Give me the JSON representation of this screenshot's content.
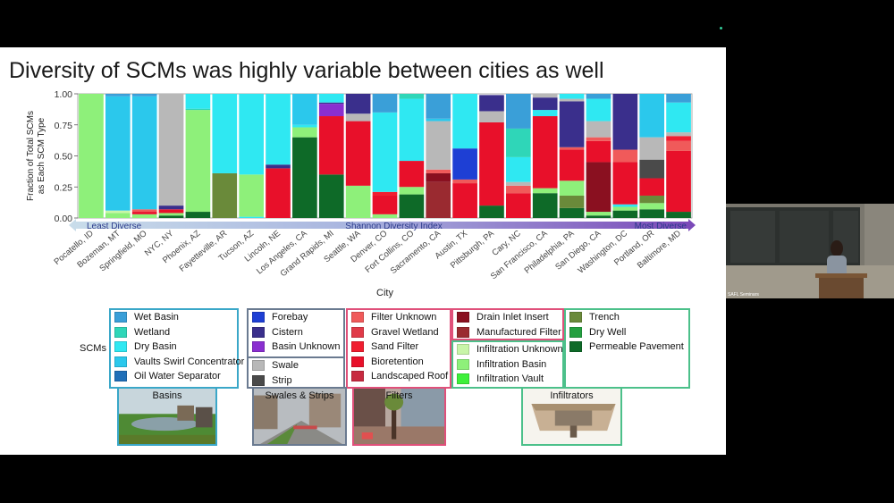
{
  "slide": {
    "title": "Diversity of SCMs was highly variable between cities as well"
  },
  "chart_data": {
    "type": "bar",
    "stacked": true,
    "ylabel": "Fraction of Total SCMs as Each SCM Type",
    "xlabel": "City",
    "ylim": [
      0,
      1
    ],
    "yticks": [
      "0.00",
      "0.25",
      "0.50",
      "0.75",
      "1.00"
    ],
    "arrow": {
      "label": "Shannon Diversity Index",
      "left_label": "Least Diverse",
      "right_label": "Most Diverse"
    },
    "categories": [
      "Pocatello, ID",
      "Bozeman, MT",
      "Springfield, MO",
      "NYC, NY",
      "Phoenix, AZ",
      "Fayetteville, AR",
      "Tucson, AZ",
      "Lincoln, NE",
      "Los Angeles, CA",
      "Grand Rapids, MI",
      "Seattle, WA",
      "Denver, CO",
      "Fort Collins, CO",
      "Sacramento, CA",
      "Austin, TX",
      "Pittsburgh, PA",
      "Cary, NC",
      "San Francisco, CA",
      "Philadelphia, PA",
      "San Diego, CA",
      "Washington, DC",
      "Portland, OR",
      "Baltimore, MD"
    ],
    "series_types": [
      "Wet Basin",
      "Wetland",
      "Dry Basin",
      "Vaults Swirl Concentrator",
      "Oil Water Separator",
      "Forebay",
      "Cistern",
      "Basin Unknown",
      "Swale",
      "Strip",
      "Filter Unknown",
      "Gravel Wetland",
      "Sand Filter",
      "Bioretention",
      "Landscaped Roof",
      "Drain Inlet Insert",
      "Manufactured Filter",
      "Infiltration Unknown",
      "Infiltration Basin",
      "Infiltration Vault",
      "Trench",
      "Dry Well",
      "Permeable Pavement"
    ],
    "stacks": [
      [
        [
          "Infiltration Basin",
          1.0
        ]
      ],
      [
        [
          "Infiltration Basin",
          0.04
        ],
        [
          "Infiltration Unknown",
          0.02
        ],
        [
          "Vaults Swirl Concentrator",
          0.92
        ],
        [
          "Wet Basin",
          0.02
        ]
      ],
      [
        [
          "Infiltration Basin",
          0.03
        ],
        [
          "Bioretention",
          0.02
        ],
        [
          "Filter Unknown",
          0.02
        ],
        [
          "Vaults Swirl Concentrator",
          0.91
        ],
        [
          "Wet Basin",
          0.02
        ]
      ],
      [
        [
          "Permeable Pavement",
          0.02
        ],
        [
          "Infiltration Basin",
          0.02
        ],
        [
          "Bioretention",
          0.03
        ],
        [
          "Cistern",
          0.03
        ],
        [
          "Swale",
          0.9
        ]
      ],
      [
        [
          "Permeable Pavement",
          0.05
        ],
        [
          "Infiltration Basin",
          0.82
        ],
        [
          "Wetland",
          0.01
        ],
        [
          "Dry Basin",
          0.12
        ]
      ],
      [
        [
          "Trench",
          0.36
        ],
        [
          "Dry Basin",
          0.64
        ]
      ],
      [
        [
          "Dry Basin",
          0.01
        ],
        [
          "Infiltration Basin",
          0.34
        ],
        [
          "Dry Basin",
          0.65
        ]
      ],
      [
        [
          "Bioretention",
          0.4
        ],
        [
          "Cistern",
          0.03
        ],
        [
          "Dry Basin",
          0.57
        ]
      ],
      [
        [
          "Permeable Pavement",
          0.65
        ],
        [
          "Infiltration Basin",
          0.08
        ],
        [
          "Dry Basin",
          0.02
        ],
        [
          "Vaults Swirl Concentrator",
          0.25
        ]
      ],
      [
        [
          "Permeable Pavement",
          0.35
        ],
        [
          "Bioretention",
          0.47
        ],
        [
          "Basin Unknown",
          0.1
        ],
        [
          "Cistern",
          0.01
        ],
        [
          "Dry Basin",
          0.07
        ]
      ],
      [
        [
          "Infiltration Basin",
          0.26
        ],
        [
          "Bioretention",
          0.52
        ],
        [
          "Swale",
          0.06
        ],
        [
          "Cistern",
          0.16
        ]
      ],
      [
        [
          "Infiltration Basin",
          0.03
        ],
        [
          "Bioretention",
          0.15
        ],
        [
          "Sand Filter",
          0.03
        ],
        [
          "Dry Basin",
          0.64
        ],
        [
          "Wet Basin",
          0.15
        ]
      ],
      [
        [
          "Permeable Pavement",
          0.19
        ],
        [
          "Infiltration Basin",
          0.06
        ],
        [
          "Bioretention",
          0.21
        ],
        [
          "Dry Basin",
          0.5
        ],
        [
          "Wetland",
          0.04
        ]
      ],
      [
        [
          "Manufactured Filter",
          0.29
        ],
        [
          "Drain Inlet Insert",
          0.07
        ],
        [
          "Filter Unknown",
          0.03
        ],
        [
          "Swale",
          0.39
        ],
        [
          "Vaults Swirl Concentrator",
          0.02
        ],
        [
          "Wet Basin",
          0.2
        ]
      ],
      [
        [
          "Bioretention",
          0.28
        ],
        [
          "Filter Unknown",
          0.03
        ],
        [
          "Forebay",
          0.25
        ],
        [
          "Dry Basin",
          0.44
        ]
      ],
      [
        [
          "Permeable Pavement",
          0.1
        ],
        [
          "Bioretention",
          0.67
        ],
        [
          "Swale",
          0.09
        ],
        [
          "Cistern",
          0.13
        ]
      ],
      [
        [
          "Bioretention",
          0.2
        ],
        [
          "Filter Unknown",
          0.06
        ],
        [
          "Swale",
          0.03
        ],
        [
          "Dry Basin",
          0.2
        ],
        [
          "Wetland",
          0.23
        ],
        [
          "Wet Basin",
          0.28
        ]
      ],
      [
        [
          "Permeable Pavement",
          0.2
        ],
        [
          "Infiltration Basin",
          0.04
        ],
        [
          "Bioretention",
          0.58
        ],
        [
          "Dry Basin",
          0.05
        ],
        [
          "Cistern",
          0.1
        ],
        [
          "Swale",
          0.03
        ]
      ],
      [
        [
          "Permeable Pavement",
          0.08
        ],
        [
          "Trench",
          0.1
        ],
        [
          "Infiltration Basin",
          0.12
        ],
        [
          "Bioretention",
          0.25
        ],
        [
          "Filter Unknown",
          0.02
        ],
        [
          "Cistern",
          0.37
        ],
        [
          "Swale",
          0.02
        ],
        [
          "Dry Basin",
          0.04
        ]
      ],
      [
        [
          "Permeable Pavement",
          0.02
        ],
        [
          "Infiltration Basin",
          0.03
        ],
        [
          "Drain Inlet Insert",
          0.4
        ],
        [
          "Bioretention",
          0.17
        ],
        [
          "Filter Unknown",
          0.03
        ],
        [
          "Swale",
          0.13
        ],
        [
          "Dry Basin",
          0.18
        ],
        [
          "Wet Basin",
          0.04
        ]
      ],
      [
        [
          "Permeable Pavement",
          0.06
        ],
        [
          "Infiltration Basin",
          0.03
        ],
        [
          "Dry Basin",
          0.02
        ],
        [
          "Bioretention",
          0.34
        ],
        [
          "Filter Unknown",
          0.1
        ],
        [
          "Cistern",
          0.45
        ]
      ],
      [
        [
          "Permeable Pavement",
          0.07
        ],
        [
          "Infiltration Basin",
          0.05
        ],
        [
          "Trench",
          0.06
        ],
        [
          "Bioretention",
          0.14
        ],
        [
          "Strip",
          0.15
        ],
        [
          "Swale",
          0.18
        ],
        [
          "Vaults Swirl Concentrator",
          0.35
        ]
      ],
      [
        [
          "Permeable Pavement",
          0.05
        ],
        [
          "Bioretention",
          0.49
        ],
        [
          "Filter Unknown",
          0.08
        ],
        [
          "Sand Filter",
          0.04
        ],
        [
          "Swale",
          0.03
        ],
        [
          "Dry Basin",
          0.24
        ],
        [
          "Wet Basin",
          0.07
        ]
      ]
    ]
  },
  "legend": {
    "heading": "SCMs",
    "groups": [
      {
        "name": "basins",
        "items": [
          {
            "label": "Wet Basin",
            "color": "#3a9fd8"
          },
          {
            "label": "Wetland",
            "color": "#2fd6b8"
          },
          {
            "label": "Dry Basin",
            "color": "#2fe8f2"
          },
          {
            "label": "Vaults Swirl Concentrator",
            "color": "#2bc8ec"
          },
          {
            "label": "Oil Water Separator",
            "color": "#1f6fb8"
          }
        ]
      },
      {
        "name": "storage",
        "items": [
          {
            "label": "Forebay",
            "color": "#1e3fd4"
          },
          {
            "label": "Cistern",
            "color": "#3a2f8c"
          },
          {
            "label": "Basin Unknown",
            "color": "#8a2fd0"
          }
        ]
      },
      {
        "name": "swales",
        "items": [
          {
            "label": "Swale",
            "color": "#b8b8b8"
          },
          {
            "label": "Strip",
            "color": "#4a4a4a"
          }
        ]
      },
      {
        "name": "filters-1",
        "items": [
          {
            "label": "Filter Unknown",
            "color": "#f05a5a"
          },
          {
            "label": "Gravel Wetland",
            "color": "#e03a48"
          },
          {
            "label": "Sand Filter",
            "color": "#f01e30"
          },
          {
            "label": "Bioretention",
            "color": "#e8102a"
          },
          {
            "label": "Landscaped Roof",
            "color": "#c82a40"
          }
        ]
      },
      {
        "name": "filters-2",
        "items": [
          {
            "label": "Drain Inlet Insert",
            "color": "#8a1020"
          },
          {
            "label": "Manufactured Filter",
            "color": "#9a2a30"
          }
        ]
      },
      {
        "name": "infiltration",
        "items": [
          {
            "label": "Infiltration Unknown",
            "color": "#c8f5a8"
          },
          {
            "label": "Infiltration Basin",
            "color": "#8ef07a"
          },
          {
            "label": "Infiltration Vault",
            "color": "#3ef03a"
          }
        ]
      },
      {
        "name": "infiltrators",
        "items": [
          {
            "label": "Trench",
            "color": "#6a8a3a"
          },
          {
            "label": "Dry Well",
            "color": "#24a040"
          },
          {
            "label": "Permeable Pavement",
            "color": "#0e6a28"
          }
        ]
      }
    ]
  },
  "photos": [
    {
      "label": "Basins",
      "color": "#3aa7c8"
    },
    {
      "label": "Swales & Strips",
      "color": "#6a7a90"
    },
    {
      "label": "Filters",
      "color": "#e0507a"
    },
    {
      "label": "Infiltrators",
      "color": "#4cc08a"
    }
  ],
  "video": {
    "caption": "SAFL Seminars"
  }
}
